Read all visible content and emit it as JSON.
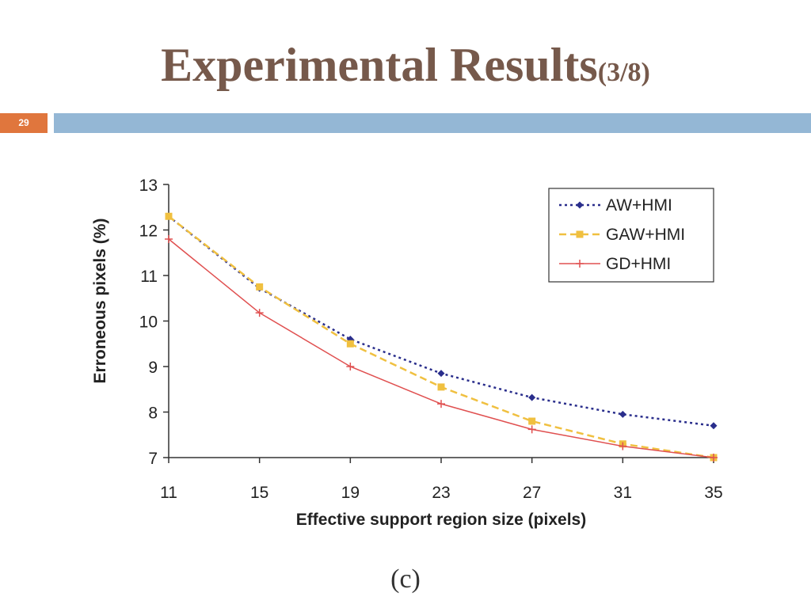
{
  "slide": {
    "title": "Experimental Results",
    "title_suffix": "(3/8)",
    "number": "29",
    "caption": "(c)",
    "colors": {
      "title": "#76594b",
      "number_box": "#e0763d",
      "bar": "#94b7d5"
    }
  },
  "chart_data": {
    "type": "line",
    "xlabel": "Effective support region size (pixels)",
    "ylabel": "Erroneous pixels (%)",
    "x": [
      11,
      15,
      19,
      23,
      27,
      31,
      35
    ],
    "xlim": [
      11,
      35
    ],
    "ylim": [
      7,
      13
    ],
    "yticks": [
      7,
      8,
      9,
      10,
      11,
      12,
      13
    ],
    "grid": false,
    "legend_position": "top-right",
    "series": [
      {
        "name": "AW+HMI",
        "values": [
          12.3,
          10.72,
          9.6,
          8.85,
          8.32,
          7.95,
          7.7
        ],
        "color": "#2a2e8c",
        "marker": "diamond",
        "dash": "dotted"
      },
      {
        "name": "GAW+HMI",
        "values": [
          12.3,
          10.75,
          9.5,
          8.55,
          7.8,
          7.3,
          7.0
        ],
        "color": "#f0c040",
        "marker": "square",
        "dash": "dashed"
      },
      {
        "name": "GD+HMI",
        "values": [
          11.8,
          10.18,
          9.0,
          8.18,
          7.62,
          7.25,
          7.0
        ],
        "color": "#e05050",
        "marker": "plus",
        "dash": "solid"
      }
    ]
  }
}
